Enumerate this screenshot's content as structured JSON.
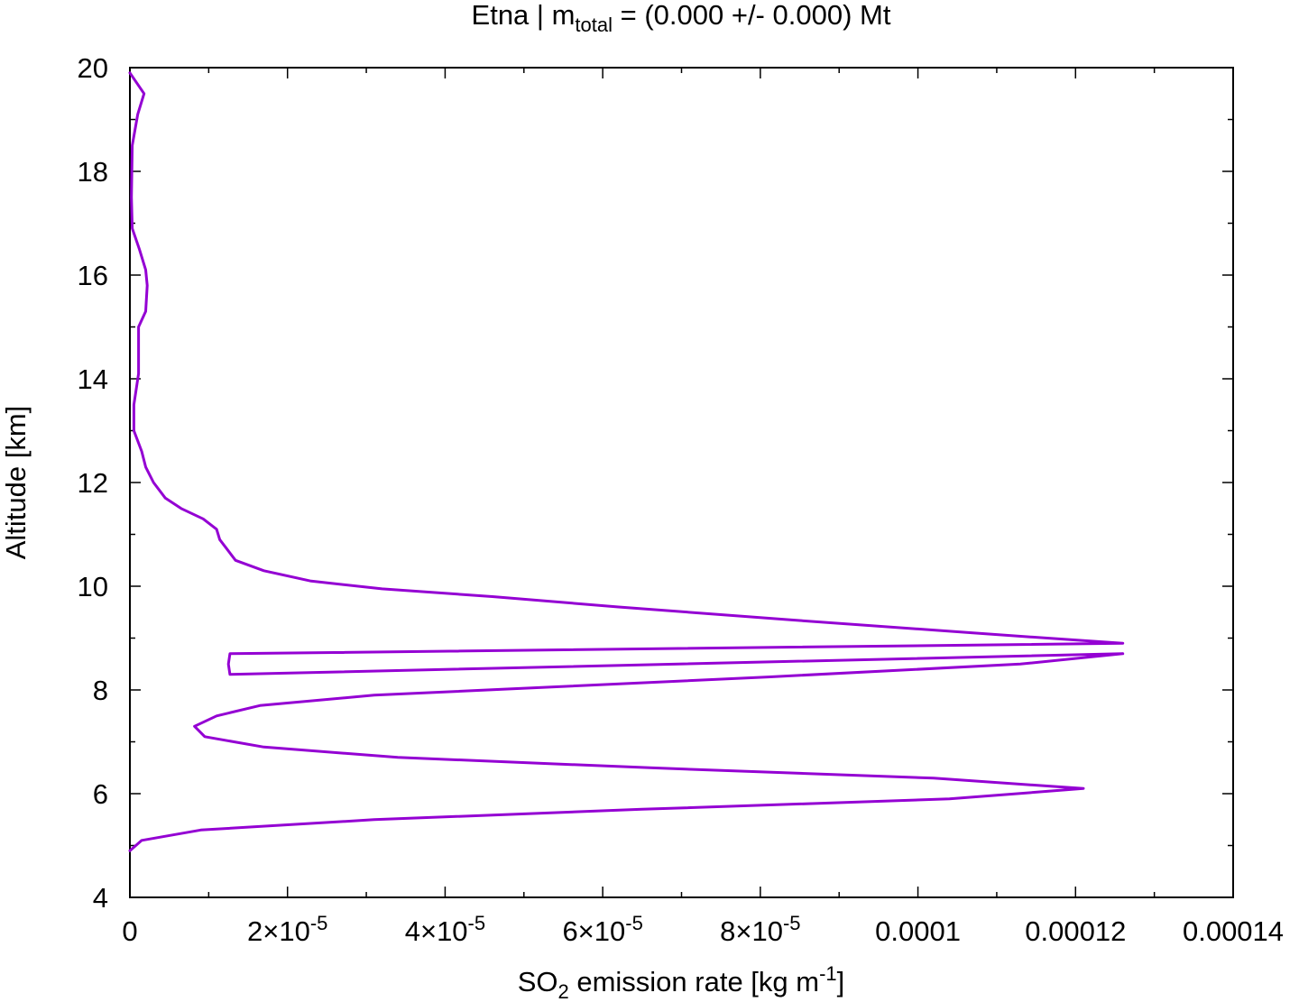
{
  "chart_data": {
    "type": "line",
    "title": {
      "prefix": "Etna | m",
      "subscript": "total",
      "suffix": " = (0.000 +/- 0.000) Mt"
    },
    "xlabel": {
      "prefix": "SO",
      "subscript": "2",
      "middle": " emission rate [kg m",
      "superscript": "-1",
      "suffix": "]"
    },
    "ylabel": "Altitude [km]",
    "xlim": [
      0,
      0.00014
    ],
    "ylim": [
      4,
      20
    ],
    "x_ticks": [
      {
        "value": 0,
        "base": "0",
        "exp": ""
      },
      {
        "value": 2e-05,
        "base": "2×10",
        "exp": "-5"
      },
      {
        "value": 4e-05,
        "base": "4×10",
        "exp": "-5"
      },
      {
        "value": 6e-05,
        "base": "6×10",
        "exp": "-5"
      },
      {
        "value": 8e-05,
        "base": "8×10",
        "exp": "-5"
      },
      {
        "value": 0.0001,
        "base": "0.0001",
        "exp": ""
      },
      {
        "value": 0.00012,
        "base": "0.00012",
        "exp": ""
      },
      {
        "value": 0.00014,
        "base": "0.00014",
        "exp": ""
      }
    ],
    "y_ticks": [
      4,
      6,
      8,
      10,
      12,
      14,
      16,
      18,
      20
    ],
    "grid": false,
    "line_color": "#9400d3",
    "series": [
      {
        "x": [
          0,
          1.8e-06,
          1e-06,
          3e-07,
          2e-07,
          3e-07,
          1.2e-06,
          2e-06,
          2.2e-06,
          2e-06,
          1.1e-06,
          1.1e-06,
          5e-07,
          5e-07,
          1.5e-06,
          2e-06,
          3e-06,
          4.5e-06,
          6.5e-06,
          9.3e-06,
          1.1e-05,
          1.14e-05,
          1.34e-05,
          1.7e-05,
          2.3e-05,
          3.2e-05,
          4.6e-05,
          6.2e-05,
          8.4e-05,
          0.000107,
          0.000126,
          1.27e-05,
          1.25e-05,
          1.27e-05,
          0.000126,
          0.000113,
          8.1e-05,
          3.1e-05,
          1.65e-05,
          1.1e-05,
          8.2e-06,
          9.5e-06,
          1.7e-05,
          3.4e-05,
          6.6e-05,
          0.000102,
          0.000121,
          0.000104,
          6.5e-05,
          3.1e-05,
          9e-06,
          1.5e-06,
          0
        ],
        "y": [
          19.9,
          19.5,
          19.1,
          18.5,
          17.5,
          16.9,
          16.5,
          16.1,
          15.8,
          15.3,
          15.0,
          14.1,
          13.5,
          13.0,
          12.6,
          12.3,
          12.0,
          11.7,
          11.5,
          11.3,
          11.1,
          10.9,
          10.5,
          10.3,
          10.1,
          9.95,
          9.8,
          9.6,
          9.35,
          9.1,
          8.9,
          8.7,
          8.5,
          8.3,
          8.7,
          8.5,
          8.25,
          7.9,
          7.7,
          7.5,
          7.3,
          7.1,
          6.9,
          6.7,
          6.5,
          6.3,
          6.1,
          5.9,
          5.7,
          5.5,
          5.3,
          5.1,
          4.9
        ]
      }
    ]
  }
}
